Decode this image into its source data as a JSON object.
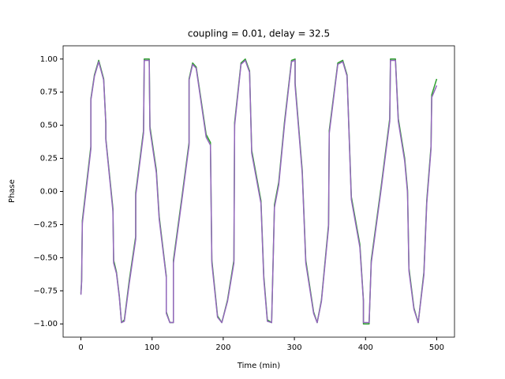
{
  "chart_data": {
    "type": "line",
    "title": "coupling = 0.01, delay = 32.5",
    "xlabel": "Time (min)",
    "ylabel": "Phase",
    "x": [
      0,
      1,
      2,
      14,
      14,
      19,
      25,
      32,
      35,
      35,
      45,
      46,
      50,
      54,
      57,
      61,
      68,
      77,
      77,
      88,
      89,
      96,
      97,
      106,
      110,
      120,
      120,
      125,
      130,
      130,
      142,
      152,
      152,
      157,
      162,
      176,
      182,
      184,
      192,
      198,
      206,
      215,
      216,
      225,
      231,
      237,
      240,
      253,
      257,
      262,
      268,
      272,
      278,
      286,
      296,
      301,
      301,
      311,
      316,
      327,
      332,
      338,
      348,
      349,
      361,
      368,
      374,
      380,
      392,
      397,
      397,
      405,
      408,
      422,
      434,
      435,
      442,
      446,
      455,
      459,
      461,
      468,
      474,
      482,
      486,
      492,
      493,
      500
    ],
    "series": [
      {
        "color": "#2ca02c",
        "values": [
          -0.77,
          -0.67,
          -0.22,
          0.34,
          0.7,
          0.88,
          0.99,
          0.85,
          0.52,
          0.4,
          -0.13,
          -0.52,
          -0.61,
          -0.79,
          -0.99,
          -0.97,
          -0.67,
          -0.34,
          -0.01,
          0.46,
          1.0,
          1.0,
          0.49,
          0.16,
          -0.19,
          -0.64,
          -0.91,
          -0.99,
          -0.99,
          -0.52,
          -0.04,
          0.37,
          0.85,
          0.97,
          0.94,
          0.43,
          0.37,
          -0.52,
          -0.94,
          -0.99,
          -0.82,
          -0.52,
          0.52,
          0.97,
          1.0,
          0.91,
          0.31,
          -0.07,
          -0.64,
          -0.97,
          -0.99,
          -0.1,
          0.07,
          0.52,
          0.99,
          1.0,
          0.82,
          0.16,
          -0.52,
          -0.91,
          -0.99,
          -0.82,
          -0.25,
          0.46,
          0.97,
          0.99,
          0.88,
          -0.04,
          -0.4,
          -0.82,
          -1.0,
          -1.0,
          -0.52,
          0.04,
          0.55,
          1.0,
          1.0,
          0.55,
          0.25,
          0.01,
          -0.58,
          -0.88,
          -0.99,
          -0.61,
          -0.07,
          0.34,
          0.73,
          0.85
        ]
      },
      {
        "color": "#9467bd",
        "values": [
          -0.78,
          -0.68,
          -0.24,
          0.32,
          0.69,
          0.87,
          0.98,
          0.84,
          0.51,
          0.39,
          -0.15,
          -0.54,
          -0.62,
          -0.8,
          -0.99,
          -0.98,
          -0.69,
          -0.36,
          -0.03,
          0.44,
          0.99,
          0.99,
          0.47,
          0.14,
          -0.21,
          -0.65,
          -0.92,
          -0.99,
          -0.99,
          -0.54,
          -0.06,
          0.35,
          0.84,
          0.96,
          0.93,
          0.41,
          0.35,
          -0.54,
          -0.95,
          -0.99,
          -0.83,
          -0.54,
          0.5,
          0.96,
          0.99,
          0.9,
          0.29,
          -0.09,
          -0.66,
          -0.98,
          -0.99,
          -0.12,
          0.05,
          0.5,
          0.98,
          0.99,
          0.8,
          0.14,
          -0.54,
          -0.92,
          -0.99,
          -0.83,
          -0.27,
          0.44,
          0.96,
          0.98,
          0.87,
          -0.06,
          -0.42,
          -0.83,
          -0.99,
          -0.99,
          -0.54,
          0.02,
          0.53,
          0.99,
          0.99,
          0.53,
          0.23,
          -0.01,
          -0.6,
          -0.89,
          -0.99,
          -0.63,
          -0.09,
          0.32,
          0.71,
          0.8
        ]
      }
    ],
    "xlim": [
      -25,
      525
    ],
    "xticks": [
      0,
      100,
      200,
      300,
      400,
      500
    ],
    "ylim": [
      -1.1,
      1.1
    ],
    "yticks": [
      {
        "value": -1,
        "label": "−1.00"
      },
      {
        "value": -0.75,
        "label": "−0.75"
      },
      {
        "value": -0.5,
        "label": "−0.50"
      },
      {
        "value": -0.25,
        "label": "−0.25"
      },
      {
        "value": 0,
        "label": "0.00"
      },
      {
        "value": 0.25,
        "label": "0.25"
      },
      {
        "value": 0.5,
        "label": "0.50"
      },
      {
        "value": 0.75,
        "label": "0.75"
      },
      {
        "value": 1,
        "label": "1.00"
      }
    ],
    "grid": false
  }
}
